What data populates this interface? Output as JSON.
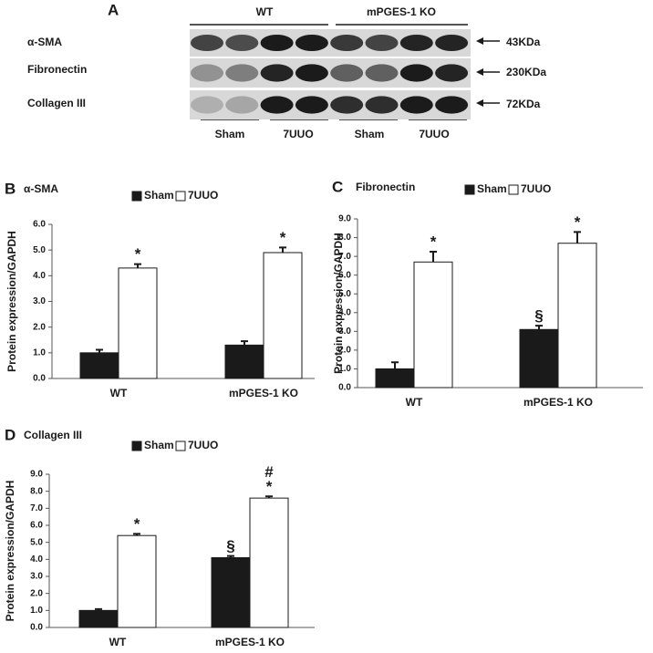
{
  "panel_a": {
    "label": "A",
    "groups": [
      "WT",
      "mPGES-1 KO"
    ],
    "rows": [
      {
        "name": "α-SMA",
        "size": "43KDa"
      },
      {
        "name": "Fibronectin",
        "size": "230KDa"
      },
      {
        "name": "Collagen III",
        "size": "72KDa"
      }
    ],
    "lanes": [
      "Sham",
      "7UUO",
      "Sham",
      "7UUO"
    ]
  },
  "chart_data": [
    {
      "type": "bar",
      "panel": "B",
      "title": "α-SMA",
      "ylabel": "Protein expression/GAPDH",
      "categories": [
        "WT",
        "mPGES-1 KO"
      ],
      "series": [
        {
          "name": "Sham",
          "color": "#1a1a1a",
          "values": [
            1.0,
            1.3
          ],
          "errors": [
            0.12,
            0.15
          ],
          "annotations": [
            null,
            null
          ]
        },
        {
          "name": "7UUO",
          "color": "#ffffff",
          "values": [
            4.3,
            4.9
          ],
          "errors": [
            0.15,
            0.2
          ],
          "annotations": [
            [
              "*"
            ],
            [
              "*"
            ]
          ]
        }
      ],
      "ylim": [
        0,
        6
      ],
      "yticks": [
        {
          "value": 0,
          "label": "0.0"
        },
        {
          "value": 1,
          "label": "1.0"
        },
        {
          "value": 2,
          "label": "2.0"
        },
        {
          "value": 3,
          "label": "3.0"
        },
        {
          "value": 4,
          "label": "4.0"
        },
        {
          "value": 5,
          "label": "5.0"
        },
        {
          "value": 6,
          "label": "6.0"
        }
      ]
    },
    {
      "type": "bar",
      "panel": "C",
      "title": "Fibronectin",
      "ylabel": "Protein expression/GAPDH",
      "categories": [
        "WT",
        "mPGES-1 KO"
      ],
      "series": [
        {
          "name": "Sham",
          "color": "#1a1a1a",
          "values": [
            1.0,
            3.1
          ],
          "errors": [
            0.35,
            0.2
          ],
          "annotations": [
            null,
            [
              "§"
            ]
          ]
        },
        {
          "name": "7UUO",
          "color": "#ffffff",
          "values": [
            6.7,
            7.7
          ],
          "errors": [
            0.55,
            0.6
          ],
          "annotations": [
            [
              "*"
            ],
            [
              "*"
            ]
          ]
        }
      ],
      "ylim": [
        0,
        9
      ],
      "yticks": [
        {
          "value": 0,
          "label": "0.0"
        },
        {
          "value": 1,
          "label": "1.0"
        },
        {
          "value": 2,
          "label": "2.0"
        },
        {
          "value": 3,
          "label": "3.0"
        },
        {
          "value": 4,
          "label": "4.0"
        },
        {
          "value": 5,
          "label": "5.0"
        },
        {
          "value": 6,
          "label": "6.0"
        },
        {
          "value": 7,
          "label": "7.0"
        },
        {
          "value": 8,
          "label": "8.0"
        },
        {
          "value": 9,
          "label": "9.0"
        }
      ]
    },
    {
      "type": "bar",
      "panel": "D",
      "title": "Collagen III",
      "ylabel": "Protein expression/GAPDH",
      "categories": [
        "WT",
        "mPGES-1 KO"
      ],
      "series": [
        {
          "name": "Sham",
          "color": "#1a1a1a",
          "values": [
            1.0,
            4.1
          ],
          "errors": [
            0.08,
            0.1
          ],
          "annotations": [
            null,
            [
              "§"
            ]
          ]
        },
        {
          "name": "7UUO",
          "color": "#ffffff",
          "values": [
            5.4,
            7.6
          ],
          "errors": [
            0.1,
            0.1
          ],
          "annotations": [
            [
              "*"
            ],
            [
              "*",
              "#"
            ]
          ]
        }
      ],
      "ylim": [
        0,
        9
      ],
      "yticks": [
        {
          "value": 0,
          "label": "0.0"
        },
        {
          "value": 1,
          "label": "1.0"
        },
        {
          "value": 2,
          "label": "2.0"
        },
        {
          "value": 3,
          "label": "3.0"
        },
        {
          "value": 4,
          "label": "4.0"
        },
        {
          "value": 5,
          "label": "5.0"
        },
        {
          "value": 6,
          "label": "6.0"
        },
        {
          "value": 7,
          "label": "7.0"
        },
        {
          "value": 8,
          "label": "8.0"
        },
        {
          "value": 9,
          "label": "9.0"
        }
      ]
    }
  ]
}
